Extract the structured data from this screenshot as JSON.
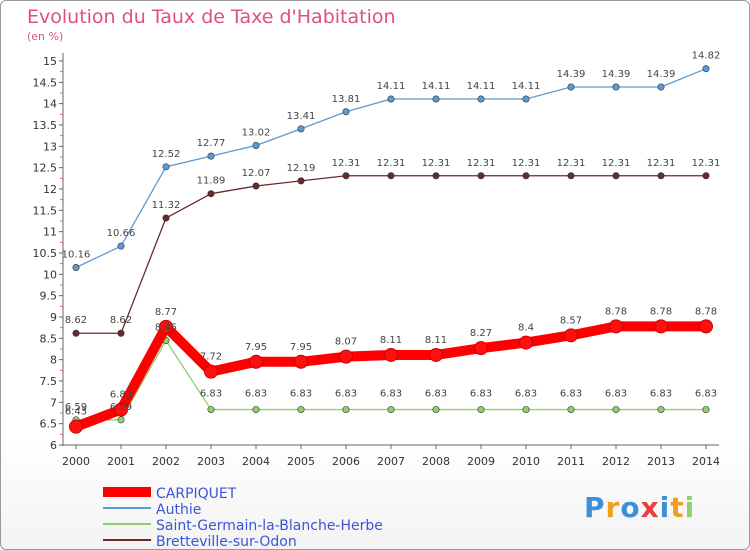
{
  "chart_data": {
    "type": "line",
    "title": "Evolution du Taux de Taxe d'Habitation",
    "subtitle": "(en %)",
    "x": [
      "2000",
      "2001",
      "2002",
      "2003",
      "2004",
      "2005",
      "2006",
      "2007",
      "2008",
      "2009",
      "2010",
      "2011",
      "2012",
      "2013",
      "2014"
    ],
    "yticks": [
      "6",
      "6.5",
      "7",
      "7.5",
      "8",
      "8.5",
      "9",
      "9.5",
      "10",
      "10.5",
      "11",
      "11.5",
      "12",
      "12.5",
      "13",
      "13.5",
      "14",
      "14.5",
      "15"
    ],
    "ylim": [
      6,
      15
    ],
    "grid": false,
    "legend_position": "bottom-left",
    "series": [
      {
        "name": "CARPIQUET",
        "color": "#ff0000",
        "values": [
          6.43,
          6.83,
          8.77,
          7.72,
          7.95,
          7.95,
          8.07,
          8.11,
          8.11,
          8.27,
          8.4,
          8.57,
          8.78,
          8.78,
          8.78
        ],
        "labels": [
          "6.43",
          "6.83",
          "8.77",
          "7.72",
          "7.95",
          "7.95",
          "8.07",
          "8.11",
          "8.11",
          "8.27",
          "8.4",
          "8.57",
          "8.78",
          "8.78",
          "8.78"
        ]
      },
      {
        "name": "Authie",
        "color": "#5b9bd5",
        "values": [
          10.16,
          10.66,
          12.52,
          12.77,
          13.02,
          13.41,
          13.81,
          14.11,
          14.11,
          14.11,
          14.11,
          14.39,
          14.39,
          14.39,
          14.82
        ],
        "labels": [
          "10.16",
          "10.66",
          "12.52",
          "12.77",
          "13.02",
          "13.41",
          "13.81",
          "14.11",
          "14.11",
          "14.11",
          "14.11",
          "14.39",
          "14.39",
          "14.39",
          "14.82"
        ]
      },
      {
        "name": "Saint-Germain-la-Blanche-Herbe",
        "color": "#8ed16b",
        "values": [
          6.59,
          6.59,
          8.45,
          6.83,
          6.83,
          6.83,
          6.83,
          6.83,
          6.83,
          6.83,
          6.83,
          6.83,
          6.83,
          6.83,
          6.83
        ],
        "labels": [
          "6.59",
          "6.59",
          "8.45",
          "6.83",
          "6.83",
          "6.83",
          "6.83",
          "6.83",
          "6.83",
          "6.83",
          "6.83",
          "6.83",
          "6.83",
          "6.83",
          "6.83"
        ]
      },
      {
        "name": "Bretteville-sur-Odon",
        "color": "#6b2a2a",
        "values": [
          8.62,
          8.62,
          11.32,
          11.89,
          12.07,
          12.19,
          12.31,
          12.31,
          12.31,
          12.31,
          12.31,
          12.31,
          12.31,
          12.31,
          12.31
        ],
        "labels": [
          "8.62",
          "8.62",
          "11.32",
          "11.89",
          "12.07",
          "12.19",
          "12.31",
          "12.31",
          "12.31",
          "12.31",
          "12.31",
          "12.31",
          "12.31",
          "12.31",
          "12.31"
        ]
      }
    ]
  },
  "brand": {
    "text": "Proxiti",
    "letters": [
      {
        "ch": "P",
        "color": "#3d8fd6"
      },
      {
        "ch": "r",
        "color": "#f0a020"
      },
      {
        "ch": "o",
        "color": "#3d8fd6"
      },
      {
        "ch": "x",
        "color": "#e84040"
      },
      {
        "ch": "i",
        "color": "#3d8fd6"
      },
      {
        "ch": "t",
        "color": "#f0a020"
      },
      {
        "ch": "i",
        "color": "#8ed16b"
      }
    ]
  }
}
